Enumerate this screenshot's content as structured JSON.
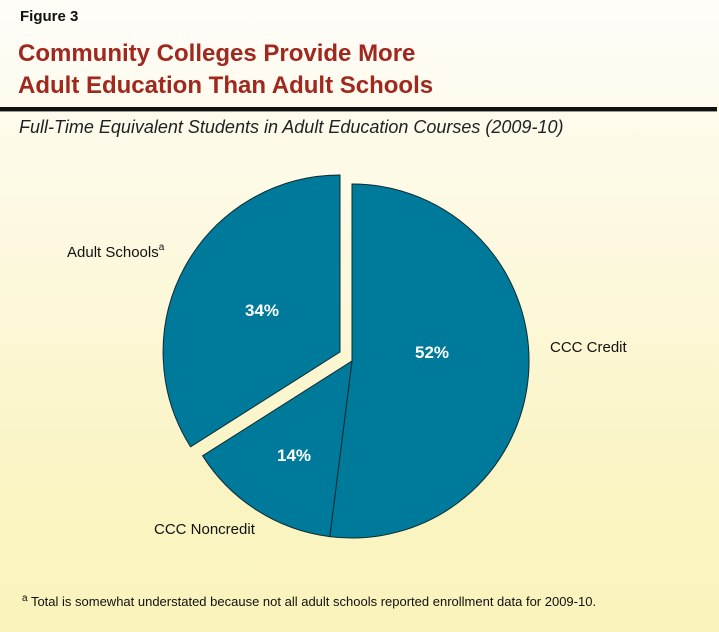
{
  "figure_label": "Figure 3",
  "title_line1": "Community Colleges Provide More",
  "title_line2": "Adult Education Than Adult Schools",
  "subtitle": "Full-Time Equivalent Students in Adult Education Courses (2009-10)",
  "footnote": {
    "marker": "a",
    "text": " Total is somewhat understated because not all adult schools reported enrollment data for 2009-10."
  },
  "colors": {
    "slice_fill": "#007a9a",
    "slice_stroke": "#0b2a33",
    "title": "#a0281e"
  },
  "chart_data": {
    "type": "pie",
    "title": "Community Colleges Provide More Adult Education Than Adult Schools",
    "subtitle": "Full-Time Equivalent Students in Adult Education Courses (2009-10)",
    "categories": [
      "CCC Credit",
      "CCC Noncredit",
      "Adult Schools"
    ],
    "values": [
      52,
      14,
      34
    ],
    "value_labels": [
      "52%",
      "14%",
      "34%"
    ],
    "exploded": [
      "Adult Schools"
    ],
    "start_angle_deg": 0,
    "direction": "clockwise",
    "legend": "none (direct labels)",
    "footnote_markers": {
      "Adult Schools": "a"
    }
  },
  "labels": {
    "credit": {
      "name": "CCC Credit",
      "pct": "52%"
    },
    "noncredit": {
      "name": "CCC Noncredit",
      "pct": "14%"
    },
    "adult": {
      "name": "Adult Schools",
      "sup": "a",
      "pct": "34%"
    }
  }
}
